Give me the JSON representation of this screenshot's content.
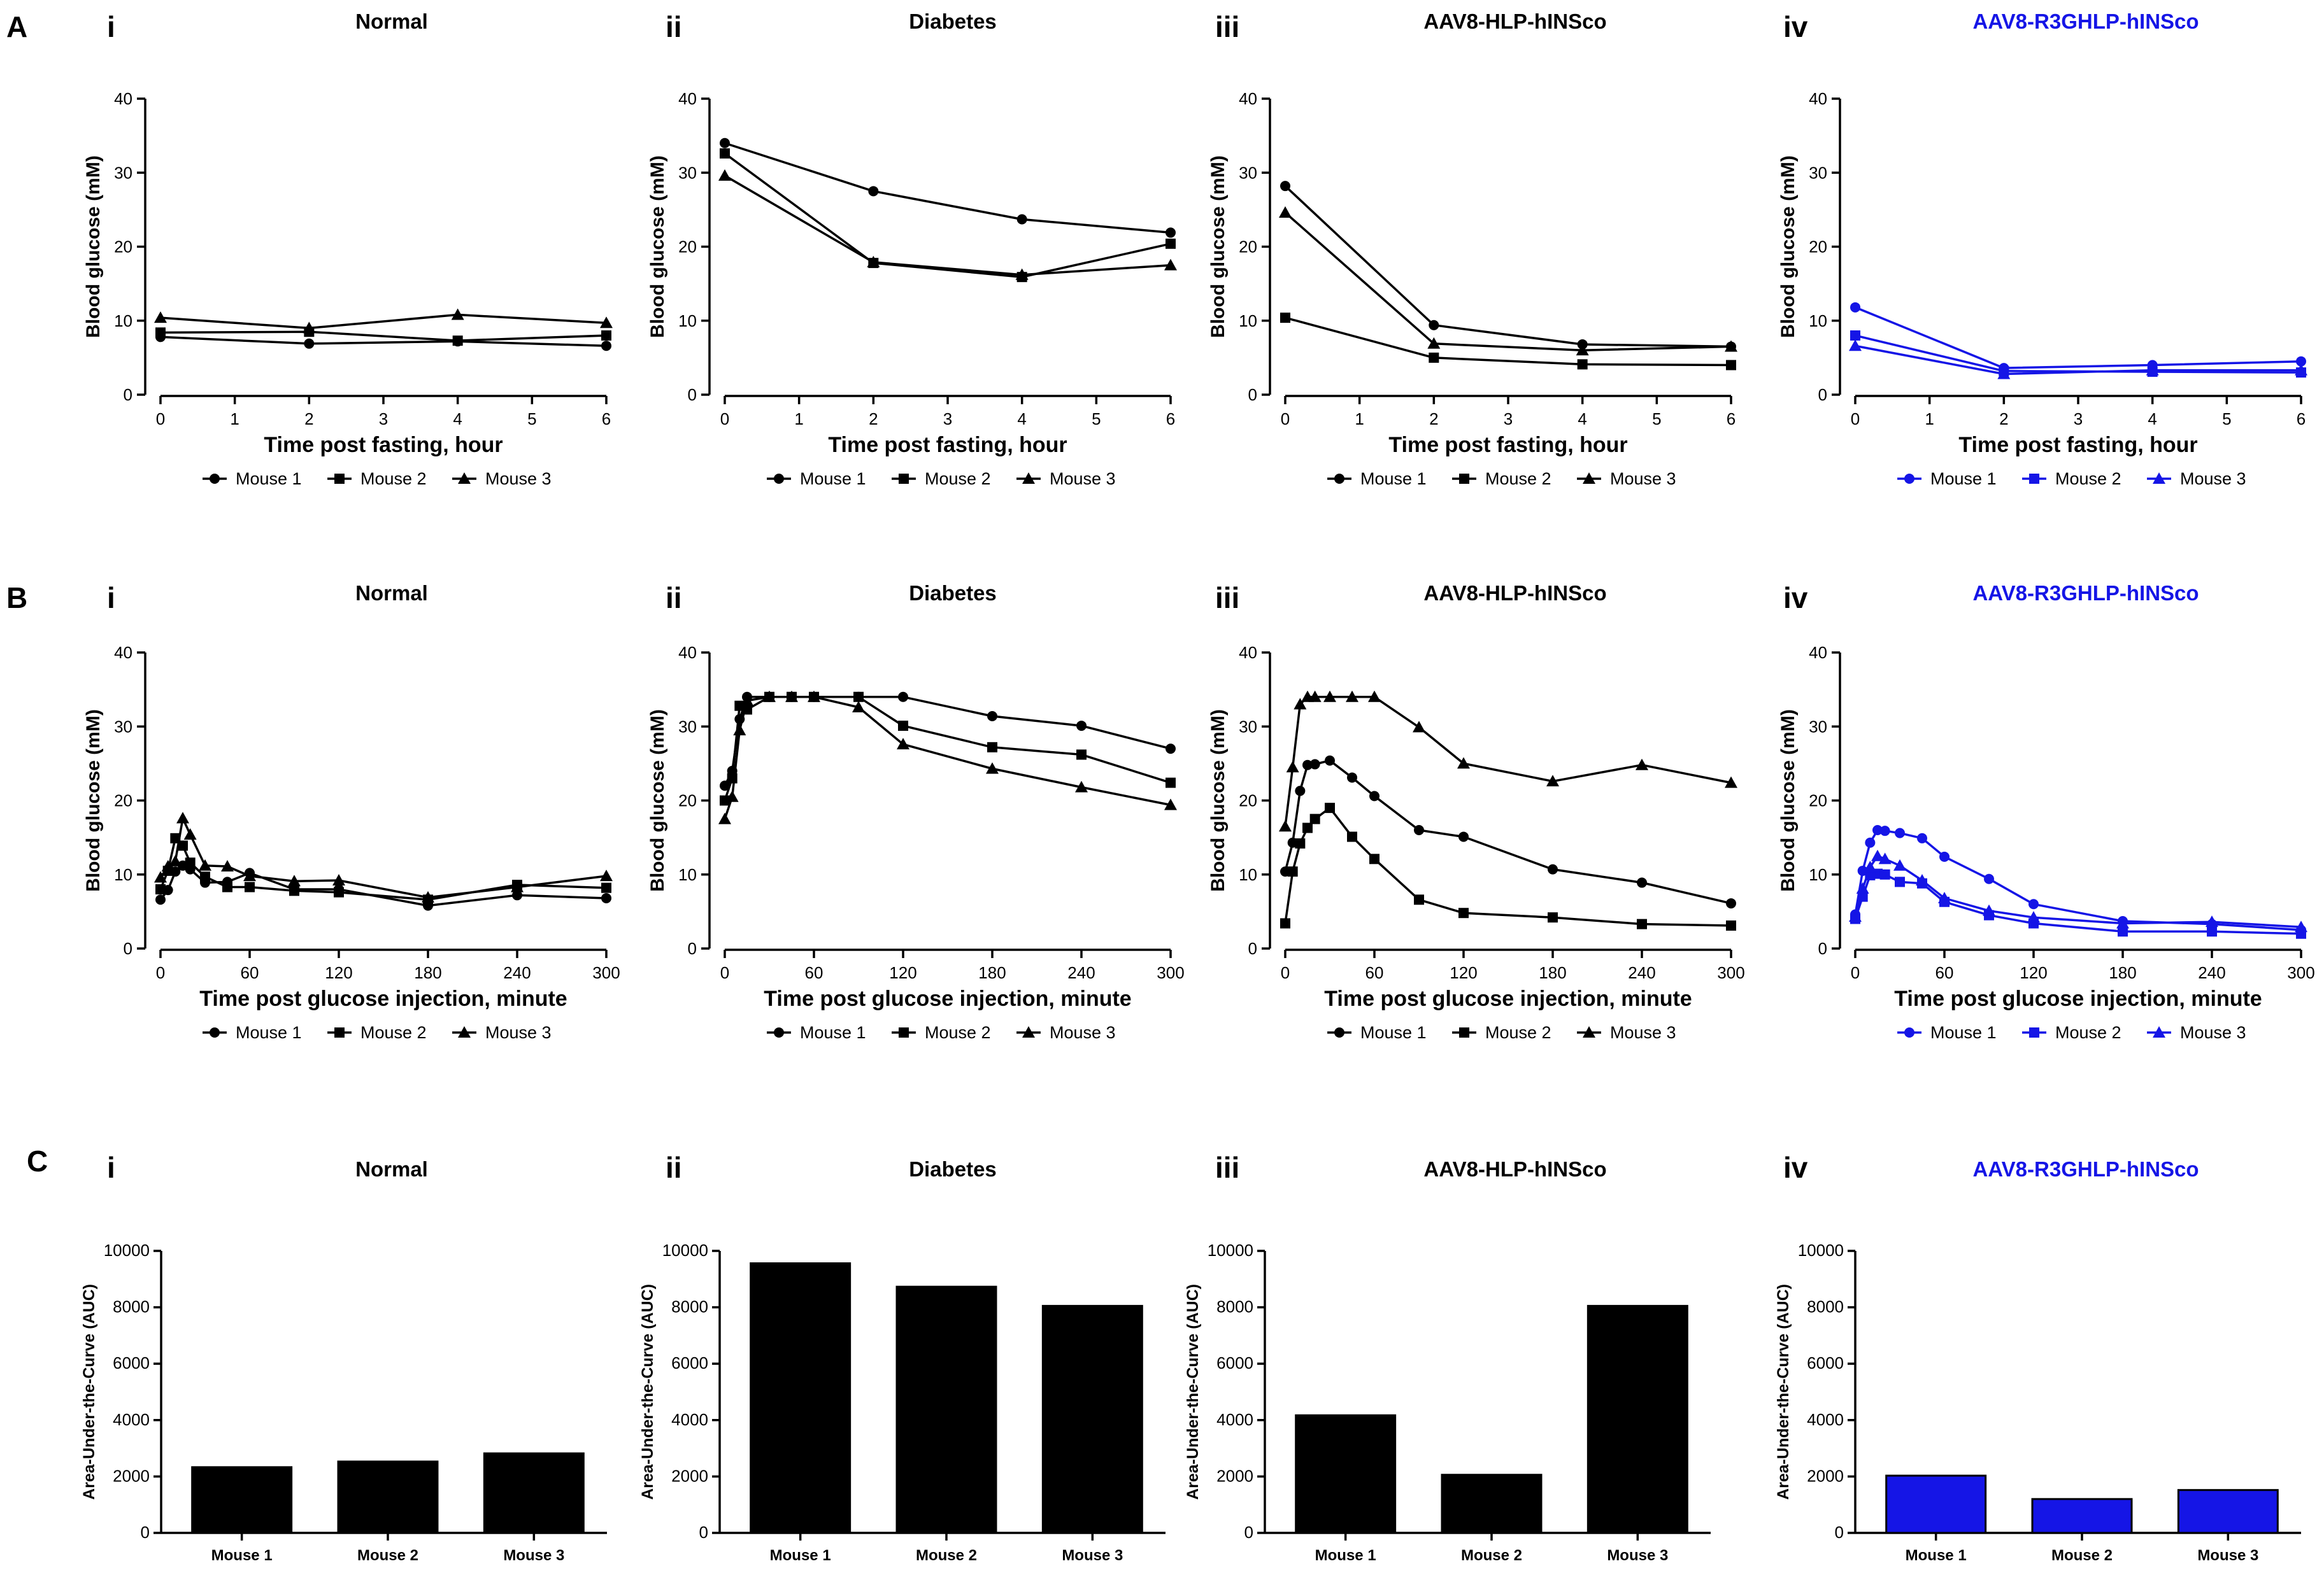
{
  "figure": {
    "row_labels": [
      "A",
      "B",
      "C"
    ],
    "panel_labels": [
      "i",
      "ii",
      "iii",
      "iv"
    ],
    "colors": {
      "black": "#000000",
      "blue": "#1515e6"
    }
  },
  "chart_data": [
    {
      "id": "A-i",
      "type": "line",
      "row": "A",
      "panel": "i",
      "title": "Normal",
      "color": "black",
      "xlabel": "Time post fasting, hour",
      "ylabel": "Blood glucose (mM)",
      "xlim": [
        0,
        6
      ],
      "ylim": [
        0,
        40
      ],
      "xticks": [
        0,
        1,
        2,
        3,
        4,
        5,
        6
      ],
      "yticks": [
        0,
        10,
        20,
        30,
        40
      ],
      "x": [
        0,
        2,
        4,
        6
      ],
      "series": [
        {
          "name": "Mouse 1",
          "marker": "circle",
          "values": [
            7.8,
            6.9,
            7.2,
            6.6
          ]
        },
        {
          "name": "Mouse 2",
          "marker": "square",
          "values": [
            8.4,
            8.5,
            7.3,
            8.0
          ]
        },
        {
          "name": "Mouse 3",
          "marker": "triangle",
          "values": [
            10.4,
            9.0,
            10.8,
            9.7
          ]
        }
      ]
    },
    {
      "id": "A-ii",
      "type": "line",
      "row": "A",
      "panel": "ii",
      "title": "Diabetes",
      "color": "black",
      "xlabel": "Time post fasting, hour",
      "ylabel": "Blood glucose (mM)",
      "xlim": [
        0,
        6
      ],
      "ylim": [
        0,
        40
      ],
      "xticks": [
        0,
        1,
        2,
        3,
        4,
        5,
        6
      ],
      "yticks": [
        0,
        10,
        20,
        30,
        40
      ],
      "x": [
        0,
        2,
        4,
        6
      ],
      "series": [
        {
          "name": "Mouse 1",
          "marker": "circle",
          "values": [
            34.0,
            27.5,
            23.7,
            21.9
          ]
        },
        {
          "name": "Mouse 2",
          "marker": "square",
          "values": [
            32.6,
            17.8,
            15.9,
            20.4
          ]
        },
        {
          "name": "Mouse 3",
          "marker": "triangle",
          "values": [
            29.6,
            17.9,
            16.2,
            17.5
          ]
        }
      ]
    },
    {
      "id": "A-iii",
      "type": "line",
      "row": "A",
      "panel": "iii",
      "title": "AAV8-HLP-hINSco",
      "color": "black",
      "xlabel": "Time post fasting, hour",
      "ylabel": "Blood glucose (mM)",
      "xlim": [
        0,
        6
      ],
      "ylim": [
        0,
        40
      ],
      "xticks": [
        0,
        1,
        2,
        3,
        4,
        5,
        6
      ],
      "yticks": [
        0,
        10,
        20,
        30,
        40
      ],
      "x": [
        0,
        2,
        4,
        6
      ],
      "series": [
        {
          "name": "Mouse 1",
          "marker": "circle",
          "values": [
            28.2,
            9.4,
            6.8,
            6.5
          ]
        },
        {
          "name": "Mouse 2",
          "marker": "square",
          "values": [
            10.4,
            5.0,
            4.1,
            4.0
          ]
        },
        {
          "name": "Mouse 3",
          "marker": "triangle",
          "values": [
            24.6,
            6.9,
            6.0,
            6.5
          ]
        }
      ]
    },
    {
      "id": "A-iv",
      "type": "line",
      "row": "A",
      "panel": "iv",
      "title": "AAV8-R3GHLP-hINSco",
      "color": "blue",
      "xlabel": "Time post fasting, hour",
      "ylabel": "Blood glucose (mM)",
      "xlim": [
        0,
        6
      ],
      "ylim": [
        0,
        40
      ],
      "xticks": [
        0,
        1,
        2,
        3,
        4,
        5,
        6
      ],
      "yticks": [
        0,
        10,
        20,
        30,
        40
      ],
      "x": [
        0,
        2,
        4,
        6
      ],
      "series": [
        {
          "name": "Mouse 1",
          "marker": "circle",
          "values": [
            11.8,
            3.6,
            4.0,
            4.5
          ]
        },
        {
          "name": "Mouse 2",
          "marker": "square",
          "values": [
            8.0,
            3.2,
            3.1,
            3.0
          ]
        },
        {
          "name": "Mouse 3",
          "marker": "triangle",
          "values": [
            6.6,
            2.8,
            3.3,
            3.3
          ]
        }
      ]
    },
    {
      "id": "B-i",
      "type": "line",
      "row": "B",
      "panel": "i",
      "title": "Normal",
      "color": "black",
      "xlabel": "Time post glucose injection, minute",
      "ylabel": "Blood glucose (mM)",
      "xlim": [
        0,
        300
      ],
      "ylim": [
        0,
        40
      ],
      "xticks": [
        0,
        60,
        120,
        180,
        240,
        300
      ],
      "yticks": [
        0,
        10,
        20,
        30,
        40
      ],
      "x": [
        0,
        5,
        10,
        15,
        20,
        30,
        45,
        60,
        90,
        120,
        180,
        240,
        300
      ],
      "series": [
        {
          "name": "Mouse 1",
          "marker": "circle",
          "values": [
            6.6,
            7.9,
            10.4,
            11.2,
            10.7,
            8.9,
            9.0,
            10.2,
            8.0,
            8.0,
            5.8,
            7.2,
            6.8
          ]
        },
        {
          "name": "Mouse 2",
          "marker": "square",
          "values": [
            8.0,
            10.5,
            14.9,
            13.9,
            11.6,
            9.7,
            8.3,
            8.3,
            7.8,
            7.6,
            6.6,
            8.6,
            8.2
          ]
        },
        {
          "name": "Mouse 3",
          "marker": "triangle",
          "values": [
            9.6,
            11.1,
            11.8,
            17.6,
            15.4,
            11.2,
            11.1,
            9.8,
            9.1,
            9.2,
            6.9,
            8.3,
            9.8
          ]
        }
      ]
    },
    {
      "id": "B-ii",
      "type": "line",
      "row": "B",
      "panel": "ii",
      "title": "Diabetes",
      "color": "black",
      "xlabel": "Time post glucose injection, minute",
      "ylabel": "Blood glucose (mM)",
      "xlim": [
        0,
        300
      ],
      "ylim": [
        0,
        40
      ],
      "xticks": [
        0,
        60,
        120,
        180,
        240,
        300
      ],
      "yticks": [
        0,
        10,
        20,
        30,
        40
      ],
      "x": [
        0,
        5,
        10,
        15,
        30,
        45,
        60,
        90,
        120,
        180,
        240,
        300
      ],
      "series": [
        {
          "name": "Mouse 1",
          "marker": "circle",
          "values": [
            22.0,
            24.0,
            31.0,
            34.0,
            34.0,
            34.0,
            34.0,
            34.0,
            34.0,
            31.4,
            30.1,
            27.0
          ]
        },
        {
          "name": "Mouse 2",
          "marker": "square",
          "values": [
            20.0,
            23.0,
            32.8,
            32.3,
            34.0,
            34.0,
            34.0,
            34.0,
            30.1,
            27.2,
            26.2,
            22.4
          ]
        },
        {
          "name": "Mouse 3",
          "marker": "triangle",
          "values": [
            17.5,
            20.5,
            29.5,
            33.5,
            34.0,
            34.0,
            34.0,
            32.6,
            27.6,
            24.3,
            21.8,
            19.4
          ]
        }
      ]
    },
    {
      "id": "B-iii",
      "type": "line",
      "row": "B",
      "panel": "iii",
      "title": "AAV8-HLP-hINSco",
      "color": "black",
      "xlabel": "Time post glucose injection, minute",
      "ylabel": "Blood glucose (mM)",
      "xlim": [
        0,
        300
      ],
      "ylim": [
        0,
        40
      ],
      "xticks": [
        0,
        60,
        120,
        180,
        240,
        300
      ],
      "yticks": [
        0,
        10,
        20,
        30,
        40
      ],
      "x": [
        0,
        5,
        10,
        15,
        20,
        30,
        45,
        60,
        90,
        120,
        180,
        240,
        300
      ],
      "series": [
        {
          "name": "Mouse 1",
          "marker": "circle",
          "values": [
            10.4,
            14.3,
            21.3,
            24.8,
            24.9,
            25.4,
            23.1,
            20.6,
            16.0,
            15.1,
            10.7,
            8.9,
            6.1
          ]
        },
        {
          "name": "Mouse 2",
          "marker": "square",
          "values": [
            3.4,
            10.4,
            14.2,
            16.3,
            17.5,
            19.0,
            15.1,
            12.1,
            6.6,
            4.8,
            4.2,
            3.3,
            3.1
          ]
        },
        {
          "name": "Mouse 3",
          "marker": "triangle",
          "values": [
            16.5,
            24.5,
            33.0,
            34.0,
            34.0,
            34.0,
            34.0,
            34.0,
            29.9,
            25.0,
            22.6,
            24.8,
            22.4
          ]
        }
      ]
    },
    {
      "id": "B-iv",
      "type": "line",
      "row": "B",
      "panel": "iv",
      "title": "AAV8-R3GHLP-hINSco",
      "color": "blue",
      "xlabel": "Time post glucose injection, minute",
      "ylabel": "Blood glucose (mM)",
      "xlim": [
        0,
        300
      ],
      "ylim": [
        0,
        40
      ],
      "xticks": [
        0,
        60,
        120,
        180,
        240,
        300
      ],
      "yticks": [
        0,
        10,
        20,
        30,
        40
      ],
      "x": [
        0,
        5,
        10,
        15,
        20,
        30,
        45,
        60,
        90,
        120,
        180,
        240,
        300
      ],
      "series": [
        {
          "name": "Mouse 1",
          "marker": "circle",
          "values": [
            4.6,
            10.5,
            14.3,
            16.0,
            15.9,
            15.6,
            14.9,
            12.4,
            9.4,
            6.0,
            3.7,
            3.3,
            2.5
          ]
        },
        {
          "name": "Mouse 2",
          "marker": "square",
          "values": [
            4.0,
            7.0,
            9.9,
            10.1,
            10.0,
            9.0,
            8.8,
            6.3,
            4.5,
            3.4,
            2.3,
            2.3,
            2.0
          ]
        },
        {
          "name": "Mouse 3",
          "marker": "triangle",
          "values": [
            4.3,
            8.1,
            11.0,
            12.5,
            12.1,
            11.2,
            9.2,
            6.8,
            5.1,
            4.2,
            3.4,
            3.6,
            2.9
          ]
        }
      ]
    },
    {
      "id": "C-i",
      "type": "bar",
      "row": "C",
      "panel": "i",
      "title": "Normal",
      "color": "black",
      "ylabel": "Area-Under-the-Curve (AUC)",
      "ylim": [
        0,
        10000
      ],
      "yticks": [
        0,
        2000,
        4000,
        6000,
        8000,
        10000
      ],
      "categories": [
        "Mouse 1",
        "Mouse 2",
        "Mouse 3"
      ],
      "values": [
        2330,
        2530,
        2820
      ]
    },
    {
      "id": "C-ii",
      "type": "bar",
      "row": "C",
      "panel": "ii",
      "title": "Diabetes",
      "color": "black",
      "ylabel": "Area-Under-the-Curve (AUC)",
      "ylim": [
        0,
        10000
      ],
      "yticks": [
        0,
        2000,
        4000,
        6000,
        8000,
        10000
      ],
      "categories": [
        "Mouse 1",
        "Mouse 2",
        "Mouse 3"
      ],
      "values": [
        9560,
        8730,
        8050
      ]
    },
    {
      "id": "C-iii",
      "type": "bar",
      "row": "C",
      "panel": "iii",
      "title": "AAV8-HLP-hINSco",
      "color": "black",
      "ylabel": "Area-Under-the-Curve (AUC)",
      "ylim": [
        0,
        10000
      ],
      "yticks": [
        0,
        2000,
        4000,
        6000,
        8000,
        10000
      ],
      "categories": [
        "Mouse 1",
        "Mouse 2",
        "Mouse 3"
      ],
      "values": [
        4170,
        2060,
        8050
      ]
    },
    {
      "id": "C-iv",
      "type": "bar",
      "row": "C",
      "panel": "iv",
      "title": "AAV8-R3GHLP-hINSco",
      "color": "blue",
      "ylabel": "Area-Under-the-Curve (AUC)",
      "ylim": [
        0,
        10000
      ],
      "yticks": [
        0,
        2000,
        4000,
        6000,
        8000,
        10000
      ],
      "categories": [
        "Mouse 1",
        "Mouse 2",
        "Mouse 3"
      ],
      "values": [
        2030,
        1200,
        1520
      ]
    }
  ]
}
